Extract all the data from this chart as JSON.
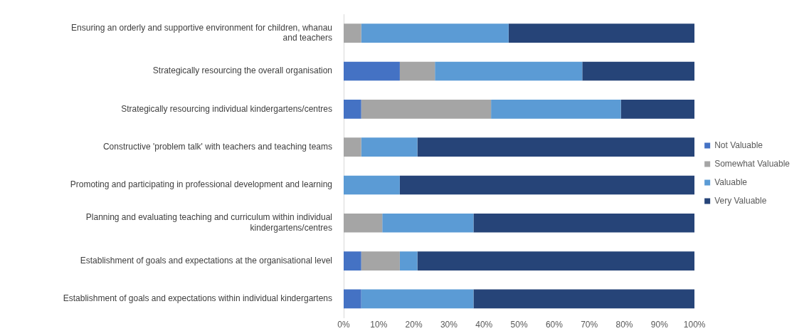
{
  "chart_data": {
    "type": "bar",
    "orientation": "horizontal",
    "stacked": true,
    "categories": [
      "Ensuring an orderly and supportive environment for children, whanau and teachers",
      "Strategically resourcing the overall organisation",
      "Strategically resourcing individual kindergartens/centres",
      "Constructive 'problem talk' with teachers and teaching teams",
      "Promoting and participating in professional development and learning",
      "Planning and evaluating teaching and curriculum within individual kindergartens/centres",
      "Establishment of goals and expectations at the organisational level",
      "Establishment of goals and expectations within individual kindergartens"
    ],
    "series": [
      {
        "name": "Not Valuable",
        "color": "#4472c4",
        "values": [
          0,
          16,
          5,
          0,
          0,
          0,
          5,
          5
        ]
      },
      {
        "name": "Somewhat Valuable",
        "color": "#a5a5a5",
        "values": [
          5,
          10,
          37,
          5,
          0,
          11,
          11,
          0
        ]
      },
      {
        "name": "Valuable",
        "color": "#5b9bd5",
        "values": [
          42,
          42,
          37,
          16,
          16,
          26,
          5,
          32
        ]
      },
      {
        "name": "Very Valuable",
        "color": "#264478",
        "values": [
          53,
          32,
          21,
          79,
          84,
          63,
          79,
          63
        ]
      }
    ],
    "xlim": [
      0,
      100
    ],
    "xticks": [
      {
        "value": 0,
        "label": "0%"
      },
      {
        "value": 10,
        "label": "10%"
      },
      {
        "value": 20,
        "label": "20%"
      },
      {
        "value": 30,
        "label": "30%"
      },
      {
        "value": 40,
        "label": "40%"
      },
      {
        "value": 50,
        "label": "50%"
      },
      {
        "value": 60,
        "label": "60%"
      },
      {
        "value": 70,
        "label": "70%"
      },
      {
        "value": 80,
        "label": "80%"
      },
      {
        "value": 90,
        "label": "90%"
      },
      {
        "value": 100,
        "label": "100%"
      }
    ],
    "grid": false,
    "legend": "right"
  }
}
